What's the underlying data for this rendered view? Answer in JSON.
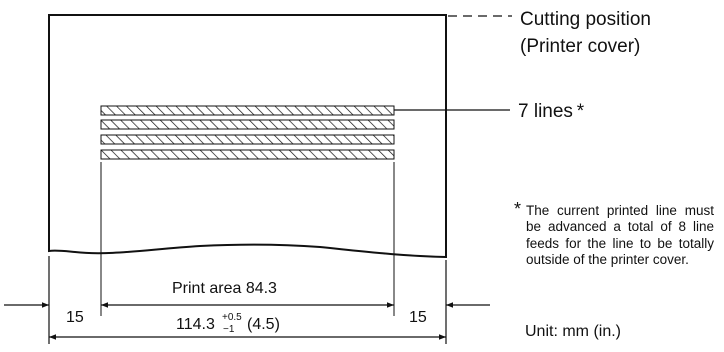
{
  "labels": {
    "cutting_line1": "Cutting position",
    "cutting_line2": "(Printer cover)",
    "lines": "7 lines *",
    "note_marker": "*",
    "note": "The current printed line must be advanced a total of 8 line feeds for the line to be totally outside of the printer cover.",
    "unit": "Unit: mm (in.)"
  },
  "dimensions": {
    "left_margin": "15",
    "right_margin": "15",
    "print_area": "Print area 84.3",
    "total_base": "114.3",
    "total_tol_plus": "+0.5",
    "total_tol_minus": "−1",
    "total_inch": "(4.5)"
  },
  "colors": {
    "stroke": "#111111",
    "background": "#ffffff"
  }
}
